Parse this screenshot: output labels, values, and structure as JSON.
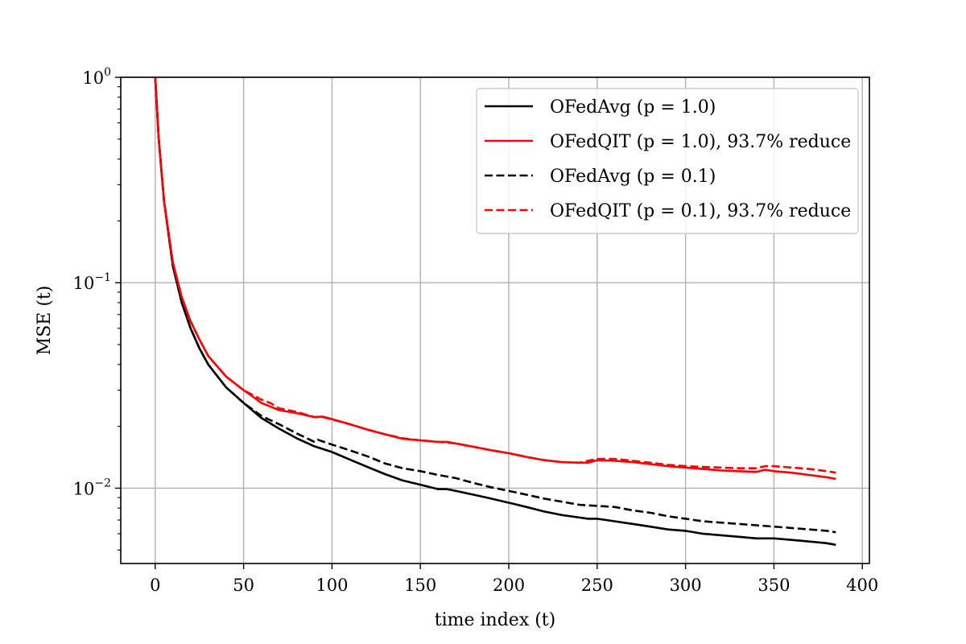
{
  "chart_data": {
    "type": "line",
    "title": "",
    "xlabel": "time index (t)",
    "ylabel": "MSE (t)",
    "xlim": [
      -19.5,
      404
    ],
    "ylim": [
      0.0043,
      1.0
    ],
    "yscale": "log",
    "grid": true,
    "legend_position": "top-right",
    "x_ticks": [
      {
        "value": 0,
        "label": "0"
      },
      {
        "value": 50,
        "label": "50"
      },
      {
        "value": 100,
        "label": "100"
      },
      {
        "value": 150,
        "label": "150"
      },
      {
        "value": 200,
        "label": "200"
      },
      {
        "value": 250,
        "label": "250"
      },
      {
        "value": 300,
        "label": "300"
      },
      {
        "value": 350,
        "label": "350"
      },
      {
        "value": 400,
        "label": "400"
      }
    ],
    "y_ticks": [
      {
        "value": 1,
        "base": "10",
        "exp": "0"
      },
      {
        "value": 0.1,
        "base": "10",
        "exp": "−1"
      },
      {
        "value": 0.01,
        "base": "10",
        "exp": "−2"
      }
    ],
    "series": [
      {
        "name": "OFedAvg (p = 1.0)",
        "color": "#000000",
        "dash": "solid",
        "points": [
          [
            0,
            1.0
          ],
          [
            2,
            0.5
          ],
          [
            5,
            0.25
          ],
          [
            10,
            0.12
          ],
          [
            15,
            0.08
          ],
          [
            20,
            0.06
          ],
          [
            25,
            0.048
          ],
          [
            30,
            0.04
          ],
          [
            40,
            0.031
          ],
          [
            50,
            0.026
          ],
          [
            60,
            0.022
          ],
          [
            70,
            0.0195
          ],
          [
            80,
            0.0175
          ],
          [
            90,
            0.016
          ],
          [
            100,
            0.015
          ],
          [
            110,
            0.0138
          ],
          [
            120,
            0.0127
          ],
          [
            130,
            0.0117
          ],
          [
            140,
            0.0109
          ],
          [
            150,
            0.0104
          ],
          [
            160,
            0.0099
          ],
          [
            165,
            0.0099
          ],
          [
            170,
            0.0097
          ],
          [
            180,
            0.0093
          ],
          [
            190,
            0.0089
          ],
          [
            200,
            0.0085
          ],
          [
            210,
            0.0081
          ],
          [
            220,
            0.0077
          ],
          [
            230,
            0.0074
          ],
          [
            240,
            0.0072
          ],
          [
            245,
            0.0071
          ],
          [
            250,
            0.0071
          ],
          [
            260,
            0.0069
          ],
          [
            270,
            0.0067
          ],
          [
            280,
            0.0065
          ],
          [
            290,
            0.0063
          ],
          [
            300,
            0.0062
          ],
          [
            310,
            0.006
          ],
          [
            320,
            0.0059
          ],
          [
            330,
            0.0058
          ],
          [
            340,
            0.0057
          ],
          [
            350,
            0.0057
          ],
          [
            360,
            0.0056
          ],
          [
            370,
            0.0055
          ],
          [
            380,
            0.0054
          ],
          [
            385,
            0.0053
          ]
        ]
      },
      {
        "name": "OFedQIT (p = 1.0), 93.7% reduce",
        "color": "#ff0000",
        "dash": "solid",
        "points": [
          [
            0,
            1.0
          ],
          [
            2,
            0.5
          ],
          [
            5,
            0.25
          ],
          [
            10,
            0.125
          ],
          [
            15,
            0.085
          ],
          [
            20,
            0.065
          ],
          [
            25,
            0.053
          ],
          [
            30,
            0.044
          ],
          [
            40,
            0.035
          ],
          [
            50,
            0.03
          ],
          [
            55,
            0.028
          ],
          [
            60,
            0.026
          ],
          [
            65,
            0.025
          ],
          [
            70,
            0.024
          ],
          [
            80,
            0.0232
          ],
          [
            90,
            0.0222
          ],
          [
            95,
            0.0223
          ],
          [
            100,
            0.0217
          ],
          [
            110,
            0.0205
          ],
          [
            120,
            0.0193
          ],
          [
            130,
            0.0183
          ],
          [
            140,
            0.0174
          ],
          [
            150,
            0.0171
          ],
          [
            160,
            0.0168
          ],
          [
            165,
            0.0168
          ],
          [
            170,
            0.0165
          ],
          [
            180,
            0.0159
          ],
          [
            190,
            0.0153
          ],
          [
            200,
            0.0148
          ],
          [
            210,
            0.0142
          ],
          [
            220,
            0.0137
          ],
          [
            230,
            0.0134
          ],
          [
            240,
            0.0133
          ],
          [
            245,
            0.0133
          ],
          [
            250,
            0.0137
          ],
          [
            260,
            0.0136
          ],
          [
            270,
            0.0134
          ],
          [
            280,
            0.0131
          ],
          [
            290,
            0.0128
          ],
          [
            300,
            0.0126
          ],
          [
            310,
            0.0124
          ],
          [
            320,
            0.0122
          ],
          [
            330,
            0.0121
          ],
          [
            340,
            0.012
          ],
          [
            345,
            0.0123
          ],
          [
            350,
            0.0121
          ],
          [
            360,
            0.0119
          ],
          [
            370,
            0.0116
          ],
          [
            380,
            0.0113
          ],
          [
            385,
            0.0111
          ]
        ]
      },
      {
        "name": "OFedAvg (p = 0.1)",
        "color": "#000000",
        "dash": "dashed",
        "points": [
          [
            0,
            1.0
          ],
          [
            2,
            0.5
          ],
          [
            5,
            0.25
          ],
          [
            10,
            0.12
          ],
          [
            15,
            0.08
          ],
          [
            20,
            0.06
          ],
          [
            25,
            0.048
          ],
          [
            30,
            0.04
          ],
          [
            40,
            0.031
          ],
          [
            50,
            0.026
          ],
          [
            60,
            0.0225
          ],
          [
            70,
            0.0205
          ],
          [
            80,
            0.0185
          ],
          [
            90,
            0.0168
          ],
          [
            92,
            0.0172
          ],
          [
            100,
            0.0163
          ],
          [
            110,
            0.0153
          ],
          [
            120,
            0.0143
          ],
          [
            130,
            0.0132
          ],
          [
            140,
            0.0125
          ],
          [
            150,
            0.0121
          ],
          [
            160,
            0.0116
          ],
          [
            170,
            0.0112
          ],
          [
            180,
            0.0106
          ],
          [
            190,
            0.0101
          ],
          [
            200,
            0.0097
          ],
          [
            210,
            0.0093
          ],
          [
            220,
            0.0089
          ],
          [
            230,
            0.0086
          ],
          [
            240,
            0.0083
          ],
          [
            250,
            0.0082
          ],
          [
            260,
            0.0081
          ],
          [
            270,
            0.0078
          ],
          [
            280,
            0.0076
          ],
          [
            290,
            0.0073
          ],
          [
            300,
            0.0071
          ],
          [
            310,
            0.0069
          ],
          [
            320,
            0.0068
          ],
          [
            330,
            0.0067
          ],
          [
            340,
            0.0066
          ],
          [
            350,
            0.0065
          ],
          [
            360,
            0.0064
          ],
          [
            370,
            0.0063
          ],
          [
            380,
            0.0062
          ],
          [
            385,
            0.0061
          ]
        ]
      },
      {
        "name": "OFedQIT (p = 0.1), 93.7% reduce",
        "color": "#ff0000",
        "dash": "dashed",
        "points": [
          [
            0,
            1.0
          ],
          [
            2,
            0.5
          ],
          [
            5,
            0.25
          ],
          [
            10,
            0.125
          ],
          [
            15,
            0.085
          ],
          [
            20,
            0.065
          ],
          [
            25,
            0.053
          ],
          [
            30,
            0.044
          ],
          [
            40,
            0.035
          ],
          [
            50,
            0.03
          ],
          [
            55,
            0.0285
          ],
          [
            60,
            0.027
          ],
          [
            65,
            0.026
          ],
          [
            70,
            0.0245
          ],
          [
            80,
            0.0235
          ],
          [
            90,
            0.0222
          ],
          [
            95,
            0.0222
          ],
          [
            100,
            0.0216
          ],
          [
            110,
            0.0205
          ],
          [
            120,
            0.0193
          ],
          [
            130,
            0.0183
          ],
          [
            140,
            0.0175
          ],
          [
            150,
            0.0171
          ],
          [
            160,
            0.0168
          ],
          [
            170,
            0.0165
          ],
          [
            180,
            0.0159
          ],
          [
            190,
            0.0153
          ],
          [
            200,
            0.0148
          ],
          [
            210,
            0.0142
          ],
          [
            220,
            0.0137
          ],
          [
            230,
            0.0134
          ],
          [
            240,
            0.0133
          ],
          [
            250,
            0.0139
          ],
          [
            260,
            0.0139
          ],
          [
            270,
            0.0136
          ],
          [
            280,
            0.0133
          ],
          [
            290,
            0.013
          ],
          [
            300,
            0.0128
          ],
          [
            310,
            0.0127
          ],
          [
            320,
            0.0126
          ],
          [
            330,
            0.0125
          ],
          [
            340,
            0.0125
          ],
          [
            345,
            0.0128
          ],
          [
            350,
            0.0128
          ],
          [
            360,
            0.0126
          ],
          [
            370,
            0.0124
          ],
          [
            380,
            0.0121
          ],
          [
            385,
            0.0119
          ]
        ]
      }
    ]
  }
}
